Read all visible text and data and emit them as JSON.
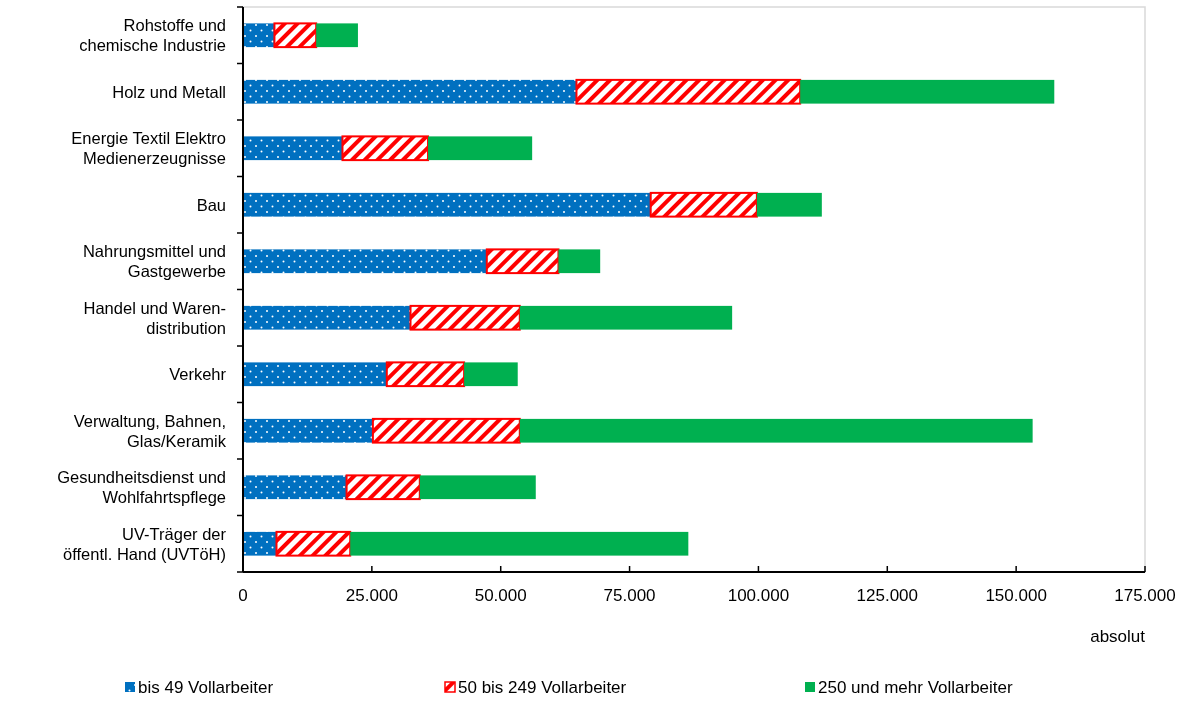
{
  "chart_data": {
    "type": "bar",
    "orientation": "horizontal",
    "stacked": true,
    "xlabel": "absolut",
    "categories": [
      "Rohstoffe und\nchemische Industrie",
      "Holz und Metall",
      "Energie Textil Elektro\nMedienerzeugnisse",
      "Bau",
      "Nahrungsmittel und\nGastgewerbe",
      "Handel und Waren-\ndistribution",
      "Verkehr",
      "Verwaltung, Bahnen,\nGlas/Keramik",
      "Gesundheitsdienst und\nWohlfahrtspflege",
      "UV-Träger der\nöffentl. Hand (UVTöH)"
    ],
    "series": [
      {
        "name": "bis 49 Vollarbeiter",
        "color": "#0070c0",
        "values": [
          6100,
          64700,
          19300,
          79100,
          47300,
          32500,
          27900,
          25200,
          20100,
          6500
        ]
      },
      {
        "name": "50 bis 249 Vollarbeiter",
        "color": "#ff0000",
        "values": [
          8100,
          43400,
          16600,
          20600,
          13900,
          21200,
          15000,
          28500,
          14200,
          14300
        ]
      },
      {
        "name": "250 und mehr Vollarbeiter",
        "color": "#00b050",
        "values": [
          8100,
          49300,
          20200,
          12600,
          8100,
          41200,
          10400,
          99500,
          22500,
          65600
        ]
      }
    ],
    "xlim": [
      0,
      175000
    ],
    "xticks": [
      0,
      {
        "value": 25000,
        "label": "25.000"
      },
      {
        "value": 50000,
        "label": "50.000"
      },
      {
        "value": 75000,
        "label": "75.000"
      },
      {
        "value": 100000,
        "label": "100.000"
      },
      {
        "value": 125000,
        "label": "125.000"
      },
      {
        "value": 150000,
        "label": "150.000"
      },
      {
        "value": 175000,
        "label": "175.000"
      }
    ],
    "grid": false,
    "legend": "bottom"
  }
}
